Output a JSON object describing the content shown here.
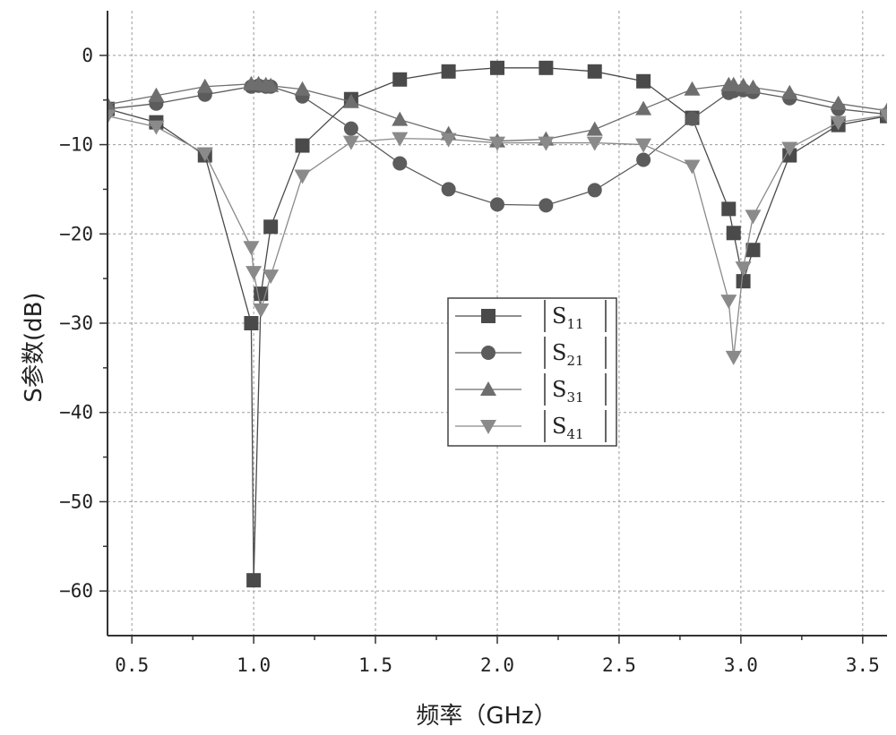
{
  "chart_data": {
    "type": "line",
    "xlabel": "频率（GHz）",
    "ylabel": "S参数(dB)",
    "xlim": [
      0.4,
      3.6
    ],
    "ylim": [
      -65,
      5
    ],
    "xticks": [
      0.5,
      1.0,
      1.5,
      2.0,
      2.5,
      3.0,
      3.5
    ],
    "xtick_labels": [
      "0.5",
      "1.0",
      "1.5",
      "2.0",
      "2.5",
      "3.0",
      "3.5"
    ],
    "yticks": [
      0,
      -10,
      -20,
      -30,
      -40,
      -50,
      -60
    ],
    "ytick_labels": [
      "0",
      "−10",
      "−20",
      "−30",
      "−40",
      "−50",
      "−60"
    ],
    "grid": true,
    "legend_position": "center",
    "series": [
      {
        "name_main": "S",
        "name_sub": "11",
        "marker": "square",
        "color": "#4a4a4a",
        "x": [
          0.4,
          0.6,
          0.8,
          0.99,
          1.0,
          1.03,
          1.07,
          1.2,
          1.4,
          1.6,
          1.8,
          2.0,
          2.2,
          2.4,
          2.6,
          2.8,
          2.95,
          2.97,
          3.01,
          3.05,
          3.2,
          3.4,
          3.6
        ],
        "y": [
          -6,
          -7.5,
          -11.2,
          -30,
          -58.8,
          -26.7,
          -19.2,
          -10.1,
          -4.9,
          -2.7,
          -1.8,
          -1.4,
          -1.4,
          -1.8,
          -2.9,
          -7.0,
          -17.2,
          -19.9,
          -25.3,
          -21.8,
          -11.2,
          -7.8,
          -6.8
        ]
      },
      {
        "name_main": "S",
        "name_sub": "21",
        "marker": "circle",
        "color": "#5c5c5c",
        "x": [
          0.4,
          0.6,
          0.8,
          0.99,
          1.02,
          1.05,
          1.07,
          1.2,
          1.4,
          1.6,
          1.8,
          2.0,
          2.2,
          2.4,
          2.6,
          2.8,
          2.95,
          2.97,
          3.01,
          3.05,
          3.2,
          3.4,
          3.6
        ],
        "y": [
          -6,
          -5.4,
          -4.4,
          -3.5,
          -3.4,
          -3.5,
          -3.5,
          -4.6,
          -8.2,
          -12.1,
          -15,
          -16.7,
          -16.8,
          -15.1,
          -11.7,
          -7.1,
          -4.2,
          -4.0,
          -3.9,
          -4.1,
          -4.8,
          -6.0,
          -6.6
        ]
      },
      {
        "name_main": "S",
        "name_sub": "31",
        "marker": "triangle-up",
        "color": "#6e6e6e",
        "x": [
          0.4,
          0.6,
          0.8,
          0.99,
          1.02,
          1.05,
          1.07,
          1.2,
          1.4,
          1.6,
          1.8,
          2.0,
          2.2,
          2.4,
          2.6,
          2.8,
          2.95,
          2.97,
          3.01,
          3.05,
          3.2,
          3.4,
          3.6
        ],
        "y": [
          -5.5,
          -4.5,
          -3.5,
          -3.2,
          -3.2,
          -3.3,
          -3.4,
          -3.8,
          -5.2,
          -7.2,
          -8.8,
          -9.6,
          -9.4,
          -8.3,
          -6.0,
          -3.8,
          -3.3,
          -3.3,
          -3.4,
          -3.6,
          -4.2,
          -5.4,
          -6.2
        ]
      },
      {
        "name_main": "S",
        "name_sub": "41",
        "marker": "triangle-down",
        "color": "#8a8a8a",
        "x": [
          0.4,
          0.6,
          0.8,
          0.99,
          1.0,
          1.03,
          1.07,
          1.2,
          1.4,
          1.6,
          1.8,
          2.0,
          2.2,
          2.4,
          2.6,
          2.8,
          2.95,
          2.97,
          3.01,
          3.05,
          3.2,
          3.4,
          3.6
        ],
        "y": [
          -6.8,
          -8.0,
          -11.0,
          -21.5,
          -24.3,
          -28.5,
          -24.7,
          -13.5,
          -9.7,
          -9.3,
          -9.4,
          -9.8,
          -9.8,
          -9.8,
          -10.0,
          -12.4,
          -27.5,
          -33.8,
          -23.8,
          -18.0,
          -10.4,
          -7.5,
          -6.7
        ]
      }
    ]
  }
}
